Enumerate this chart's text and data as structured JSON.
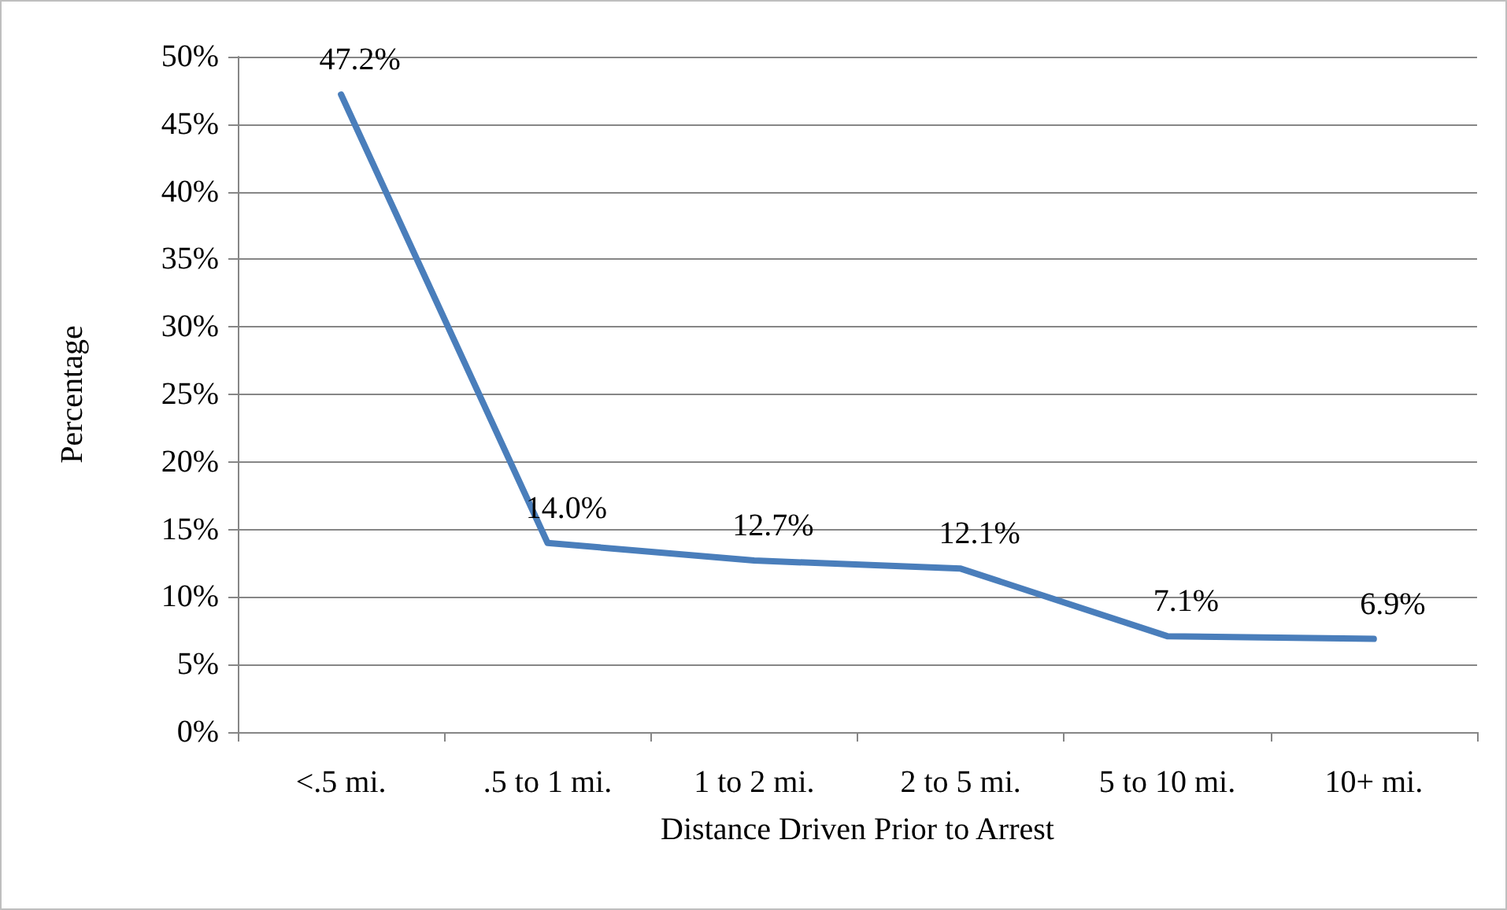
{
  "chart_data": {
    "type": "line",
    "xlabel": "Distance Driven Prior to Arrest",
    "ylabel": "Percentage",
    "categories": [
      "<.5 mi.",
      ".5 to 1 mi.",
      "1 to 2 mi.",
      "2 to 5 mi.",
      "5 to 10 mi.",
      "10+ mi."
    ],
    "series": [
      {
        "color": "#4a7ebb",
        "values": [
          47.2,
          14.0,
          12.7,
          12.1,
          7.1,
          6.9
        ],
        "value_labels": [
          "47.2%",
          "14.0%",
          "12.7%",
          "12.1%",
          "7.1%",
          "6.9%"
        ]
      }
    ],
    "ylim": [
      0,
      50
    ],
    "yticks": [
      {
        "value": 0,
        "label": "0%"
      },
      {
        "value": 5,
        "label": "5%"
      },
      {
        "value": 10,
        "label": "10%"
      },
      {
        "value": 15,
        "label": "15%"
      },
      {
        "value": 20,
        "label": "20%"
      },
      {
        "value": 25,
        "label": "25%"
      },
      {
        "value": 30,
        "label": "30%"
      },
      {
        "value": 35,
        "label": "35%"
      },
      {
        "value": 40,
        "label": "40%"
      },
      {
        "value": 45,
        "label": "45%"
      },
      {
        "value": 50,
        "label": "50%"
      }
    ],
    "grid": "y",
    "marker": "none",
    "line_style": "solid"
  }
}
